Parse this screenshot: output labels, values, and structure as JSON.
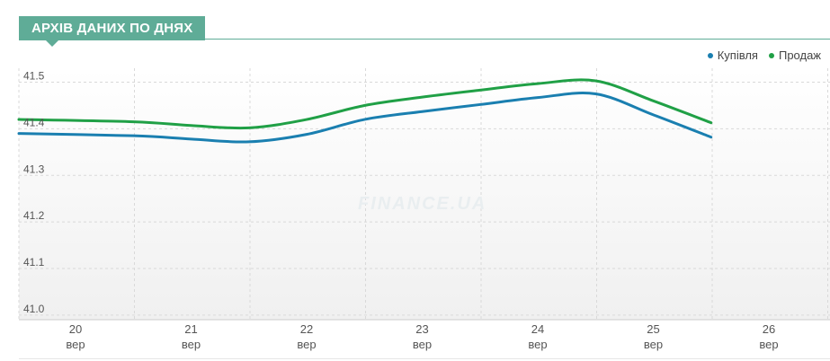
{
  "header": {
    "title": "АРХІВ ДАНИХ ПО ДНЯХ"
  },
  "watermark": "FINANCE.UA",
  "colors": {
    "buy": "#1a7fb0",
    "sell": "#20a046",
    "accent": "#5fac97"
  },
  "chart_data": {
    "type": "line",
    "x": [
      "20",
      "21",
      "22",
      "23",
      "24",
      "25",
      "26"
    ],
    "x_sublabel": "вер",
    "yticks": [
      "41.5",
      "41.4",
      "41.3",
      "41.2",
      "41.1",
      "41.0"
    ],
    "ylim": [
      40.99,
      41.53
    ],
    "grid": true,
    "legend_position": "top-right",
    "series": [
      {
        "name": "Купівля",
        "color": "#1a7fb0",
        "points": [
          [
            20,
            41.39
          ],
          [
            20.5,
            41.385
          ],
          [
            21,
            41.378
          ],
          [
            21.5,
            41.372
          ],
          [
            22,
            41.388
          ],
          [
            22.5,
            41.42
          ],
          [
            23,
            41.437
          ],
          [
            23.5,
            41.452
          ],
          [
            24,
            41.467
          ],
          [
            24.5,
            41.475
          ],
          [
            25,
            41.43
          ],
          [
            25.5,
            41.382
          ]
        ]
      },
      {
        "name": "Продаж",
        "color": "#20a046",
        "points": [
          [
            20,
            41.42
          ],
          [
            20.5,
            41.415
          ],
          [
            21,
            41.407
          ],
          [
            21.5,
            41.402
          ],
          [
            22,
            41.42
          ],
          [
            22.5,
            41.45
          ],
          [
            23,
            41.468
          ],
          [
            23.5,
            41.483
          ],
          [
            24,
            41.497
          ],
          [
            24.5,
            41.503
          ],
          [
            25,
            41.46
          ],
          [
            25.5,
            41.413
          ]
        ]
      }
    ]
  }
}
